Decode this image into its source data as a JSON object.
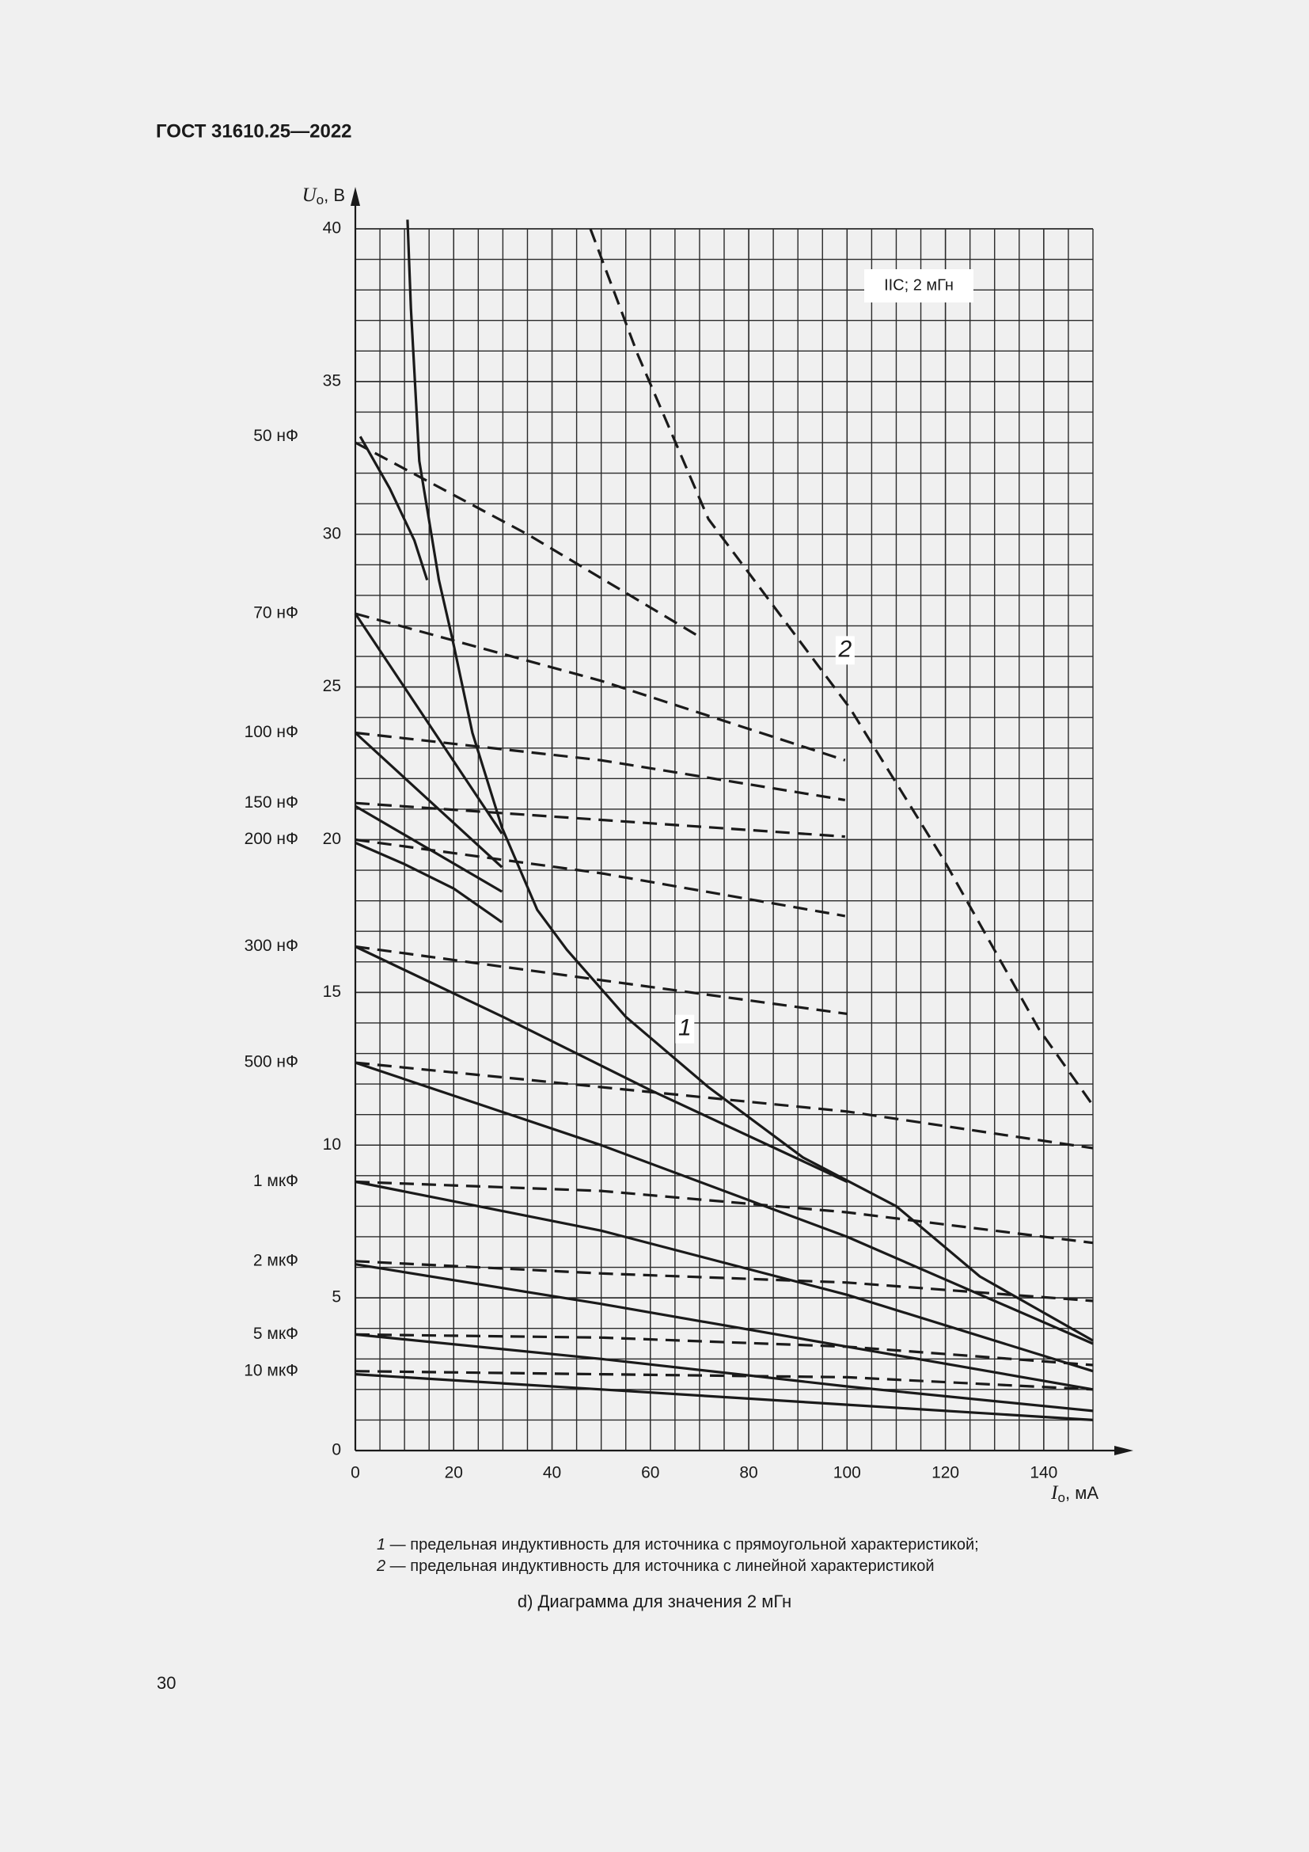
{
  "header": {
    "title": "ГОСТ 31610.25—2022"
  },
  "chart_data": {
    "type": "line",
    "color": "#1a1a1a",
    "xlim": [
      0,
      150
    ],
    "ylim": [
      0,
      40
    ],
    "xticks": [
      0,
      20,
      40,
      60,
      80,
      100,
      120,
      140
    ],
    "yticks": [
      0,
      5,
      10,
      15,
      20,
      25,
      30,
      35,
      40
    ],
    "grid": true,
    "grid_step": {
      "x": 5,
      "y": 1
    },
    "x_label": {
      "symbol": "I",
      "subscript": "о",
      "unit": ", мА"
    },
    "y_label": {
      "symbol": "U",
      "subscript": "о",
      "unit": ", В"
    },
    "annotation": "IIC; 2 мГн",
    "curve_labels": [
      "1",
      "2"
    ],
    "capacitance_labels": [
      {
        "value": 33.2,
        "label": "50 нФ"
      },
      {
        "value": 27.4,
        "label": "70 нФ"
      },
      {
        "value": 23.5,
        "label": "100 нФ"
      },
      {
        "value": 21.2,
        "label": "150 нФ"
      },
      {
        "value": 20,
        "label": "200 нФ"
      },
      {
        "value": 16.5,
        "label": "300 нФ"
      },
      {
        "value": 12.7,
        "label": "500 нФ"
      },
      {
        "value": 8.8,
        "label": "1 мкФ"
      },
      {
        "value": 6.2,
        "label": "2 мкФ"
      },
      {
        "value": 3.8,
        "label": "5 мкФ"
      },
      {
        "value": 2.6,
        "label": "10 мкФ"
      }
    ],
    "series": [
      {
        "style": "solid",
        "x": [
          10.6,
          11.3,
          13,
          17,
          19.7,
          23.8,
          29.8,
          37,
          43,
          55,
          71.8,
          91,
          110,
          127,
          150
        ],
        "values": [
          40.3,
          37.4,
          32.4,
          28.5,
          26.6,
          23.5,
          20.4,
          17.7,
          16.4,
          14.2,
          11.9,
          9.6,
          8,
          5.7,
          3.6
        ]
      },
      {
        "style": "dashed",
        "x": [
          47.8,
          57.4,
          71.8,
          86.2,
          100.6,
          119.8,
          139,
          150
        ],
        "values": [
          40,
          35.9,
          30.5,
          27.4,
          24.3,
          19.3,
          13.8,
          11.3
        ]
      },
      {
        "style": "solid",
        "x": [
          1,
          7,
          12,
          14.6
        ],
        "values": [
          33.2,
          31.5,
          29.8,
          28.5
        ]
      },
      {
        "style": "dashed",
        "x": [
          0,
          35,
          69.4
        ],
        "values": [
          33,
          30,
          26.7
        ]
      },
      {
        "style": "solid",
        "x": [
          0,
          29.8
        ],
        "values": [
          27.4,
          20.2
        ]
      },
      {
        "style": "dashed",
        "x": [
          0,
          50,
          99.6
        ],
        "values": [
          27.4,
          25.2,
          22.6
        ]
      },
      {
        "style": "solid",
        "x": [
          0,
          29.8
        ],
        "values": [
          23.5,
          19.1
        ]
      },
      {
        "style": "dashed",
        "x": [
          0,
          50,
          99.6
        ],
        "values": [
          23.5,
          22.6,
          21.3
        ]
      },
      {
        "style": "solid",
        "x": [
          0,
          29.8
        ],
        "values": [
          21.1,
          18.3
        ]
      },
      {
        "style": "dashed",
        "x": [
          0,
          99.6
        ],
        "values": [
          21.2,
          20.1
        ]
      },
      {
        "style": "solid",
        "x": [
          0,
          10,
          20,
          29.8
        ],
        "values": [
          19.9,
          19.2,
          18.4,
          17.3
        ]
      },
      {
        "style": "dashed",
        "x": [
          0,
          50,
          99.6
        ],
        "values": [
          20,
          18.9,
          17.5
        ]
      },
      {
        "style": "solid",
        "x": [
          0,
          30,
          60,
          100
        ],
        "values": [
          16.5,
          14.2,
          11.8,
          8.8
        ]
      },
      {
        "style": "dashed",
        "x": [
          0,
          50,
          100
        ],
        "values": [
          16.5,
          15.4,
          14.3
        ]
      },
      {
        "style": "solid",
        "x": [
          0,
          50,
          100,
          150
        ],
        "values": [
          12.7,
          10,
          7,
          3.5
        ]
      },
      {
        "style": "dashed",
        "x": [
          0,
          50,
          100,
          150
        ],
        "values": [
          12.7,
          11.9,
          11.1,
          9.9
        ]
      },
      {
        "style": "solid",
        "x": [
          0,
          50,
          100,
          150
        ],
        "values": [
          8.8,
          7.2,
          5.1,
          2.6
        ]
      },
      {
        "style": "dashed",
        "x": [
          0,
          50,
          100,
          150
        ],
        "values": [
          8.8,
          8.5,
          7.8,
          6.8
        ]
      },
      {
        "style": "solid",
        "x": [
          0,
          50,
          100,
          150
        ],
        "values": [
          6.1,
          4.8,
          3.4,
          2
        ]
      },
      {
        "style": "dashed",
        "x": [
          0,
          50,
          100,
          150
        ],
        "values": [
          6.2,
          5.8,
          5.5,
          4.9
        ]
      },
      {
        "style": "solid",
        "x": [
          0,
          50,
          100,
          150
        ],
        "values": [
          3.8,
          3,
          2.1,
          1.3
        ]
      },
      {
        "style": "dashed",
        "x": [
          0,
          50,
          100,
          150
        ],
        "values": [
          3.8,
          3.7,
          3.4,
          2.8
        ]
      },
      {
        "style": "solid",
        "x": [
          0,
          50,
          100,
          150
        ],
        "values": [
          2.5,
          2,
          1.5,
          1
        ]
      },
      {
        "style": "dashed",
        "x": [
          0,
          50,
          100,
          150
        ],
        "values": [
          2.6,
          2.5,
          2.4,
          2
        ]
      }
    ]
  },
  "notes": [
    {
      "key": "1",
      "text": " — предельная индуктивность для источника с прямоугольной характеристикой;"
    },
    {
      "key": "2",
      "text": " — предельная индуктивность для источника с линейной характеристикой"
    }
  ],
  "caption": "d) Диаграмма для значения 2 мГн",
  "page_number": "30"
}
